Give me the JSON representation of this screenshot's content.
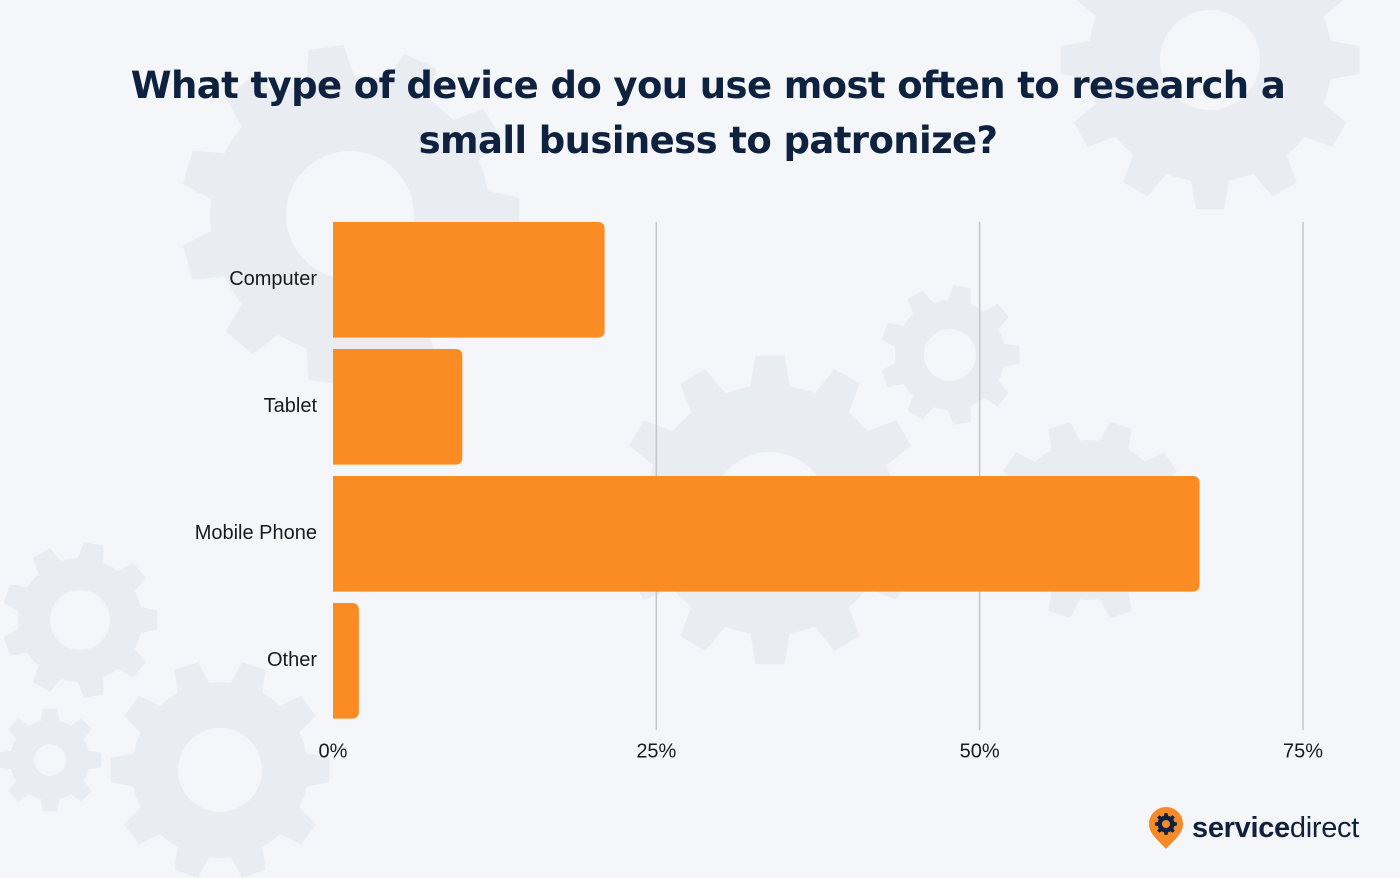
{
  "colors": {
    "background": "#f4f6f9",
    "bar": "#fb8c23",
    "title": "#0e2240",
    "gridline": "#c4c6ca",
    "gear": "#e9ecf1",
    "logo_pin": "#f58a2a"
  },
  "chart_data": {
    "type": "bar",
    "orientation": "horizontal",
    "title": "What type of device do you use most often to research a small business to patronize?",
    "categories": [
      "Computer",
      "Tablet",
      "Mobile Phone",
      "Other"
    ],
    "values": [
      21,
      10,
      67,
      2
    ],
    "unit": "%",
    "xlim": [
      0,
      75
    ],
    "x_ticks": [
      0,
      25,
      50,
      75
    ],
    "x_tick_labels": [
      "0%",
      "25%",
      "50%",
      "75%"
    ],
    "xlabel": "",
    "ylabel": "",
    "grid": "vertical",
    "legend": "none"
  },
  "logo": {
    "icon": "gear-location-pin-icon",
    "text_bold": "service",
    "text_regular": "direct"
  }
}
